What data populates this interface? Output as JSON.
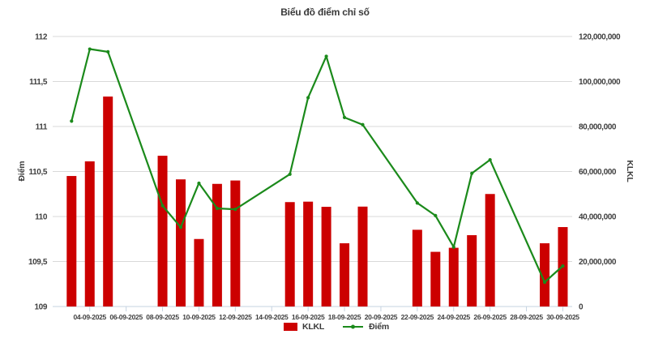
{
  "chart_data": {
    "type": "bar+line",
    "title": "Biểu đồ điểm chỉ số",
    "grid": true,
    "legend_position": "bottom",
    "colors": {
      "bar": "#cc0000",
      "line": "#1b8a1b",
      "gridline": "#d9d9d9",
      "axis_line": "#c6d3e1",
      "text": "#3f3f3f"
    },
    "left_axis": {
      "label": "Điểm",
      "min": 109,
      "max": 112,
      "step": 0.5,
      "tick_labels": [
        "112",
        "111,5",
        "111",
        "110,5",
        "110",
        "109,5",
        "109"
      ]
    },
    "right_axis": {
      "label": "KLKL",
      "min": 0,
      "max": 120000000,
      "step": 20000000,
      "tick_labels": [
        "120,000,000",
        "100,000,000",
        "80,000,000",
        "60,000,000",
        "40,000,000",
        "20,000,000",
        "0"
      ]
    },
    "series": [
      {
        "name": "KLKL",
        "type": "bar",
        "axis": "right",
        "color": "#cc0000"
      },
      {
        "name": "Điểm",
        "type": "line",
        "axis": "left",
        "color": "#1b8a1b"
      }
    ],
    "x_ticks": [
      {
        "slot": 1,
        "label": "04-09-2025"
      },
      {
        "slot": 3,
        "label": "06-09-2025"
      },
      {
        "slot": 5,
        "label": "08-09-2025"
      },
      {
        "slot": 7,
        "label": "10-09-2025"
      },
      {
        "slot": 9,
        "label": "12-09-2025"
      },
      {
        "slot": 11,
        "label": "14-09-2025"
      },
      {
        "slot": 13,
        "label": "16-09-2025"
      },
      {
        "slot": 15,
        "label": "18-09-2025"
      },
      {
        "slot": 17,
        "label": "20-09-2025"
      },
      {
        "slot": 19,
        "label": "22-09-2025"
      },
      {
        "slot": 21,
        "label": "24-09-2025"
      },
      {
        "slot": 23,
        "label": "26-09-2025"
      },
      {
        "slot": 25,
        "label": "28-09-2025"
      },
      {
        "slot": 27,
        "label": "30-09-2025"
      }
    ],
    "points": [
      {
        "date": "03-09-2025",
        "slot": 0,
        "klkl": 58000000,
        "diem": 111.06
      },
      {
        "date": "04-09-2025",
        "slot": 1,
        "klkl": 64500000,
        "diem": 111.86
      },
      {
        "date": "05-09-2025",
        "slot": 2,
        "klkl": 93300000,
        "diem": 111.83
      },
      {
        "date": "08-09-2025",
        "slot": 5,
        "klkl": 67000000,
        "diem": 110.12
      },
      {
        "date": "09-09-2025",
        "slot": 6,
        "klkl": 56500000,
        "diem": 109.88
      },
      {
        "date": "10-09-2025",
        "slot": 7,
        "klkl": 30000000,
        "diem": 110.37
      },
      {
        "date": "11-09-2025",
        "slot": 8,
        "klkl": 54500000,
        "diem": 110.09
      },
      {
        "date": "12-09-2025",
        "slot": 9,
        "klkl": 56000000,
        "diem": 110.08
      },
      {
        "date": "15-09-2025",
        "slot": 12,
        "klkl": 46400000,
        "diem": 110.47
      },
      {
        "date": "16-09-2025",
        "slot": 13,
        "klkl": 46600000,
        "diem": 111.32
      },
      {
        "date": "17-09-2025",
        "slot": 14,
        "klkl": 44300000,
        "diem": 111.78
      },
      {
        "date": "18-09-2025",
        "slot": 15,
        "klkl": 28100000,
        "diem": 111.1
      },
      {
        "date": "19-09-2025",
        "slot": 16,
        "klkl": 44400000,
        "diem": 111.02
      },
      {
        "date": "22-09-2025",
        "slot": 19,
        "klkl": 34100000,
        "diem": 110.15
      },
      {
        "date": "23-09-2025",
        "slot": 20,
        "klkl": 24300000,
        "diem": 110.01
      },
      {
        "date": "24-09-2025",
        "slot": 21,
        "klkl": 26100000,
        "diem": 109.66
      },
      {
        "date": "25-09-2025",
        "slot": 22,
        "klkl": 31700000,
        "diem": 110.48
      },
      {
        "date": "26-09-2025",
        "slot": 23,
        "klkl": 50000000,
        "diem": 110.63
      },
      {
        "date": "29-09-2025",
        "slot": 26,
        "klkl": 28100000,
        "diem": 109.27
      },
      {
        "date": "30-09-2025",
        "slot": 27,
        "klkl": 35300000,
        "diem": 109.45
      }
    ]
  }
}
